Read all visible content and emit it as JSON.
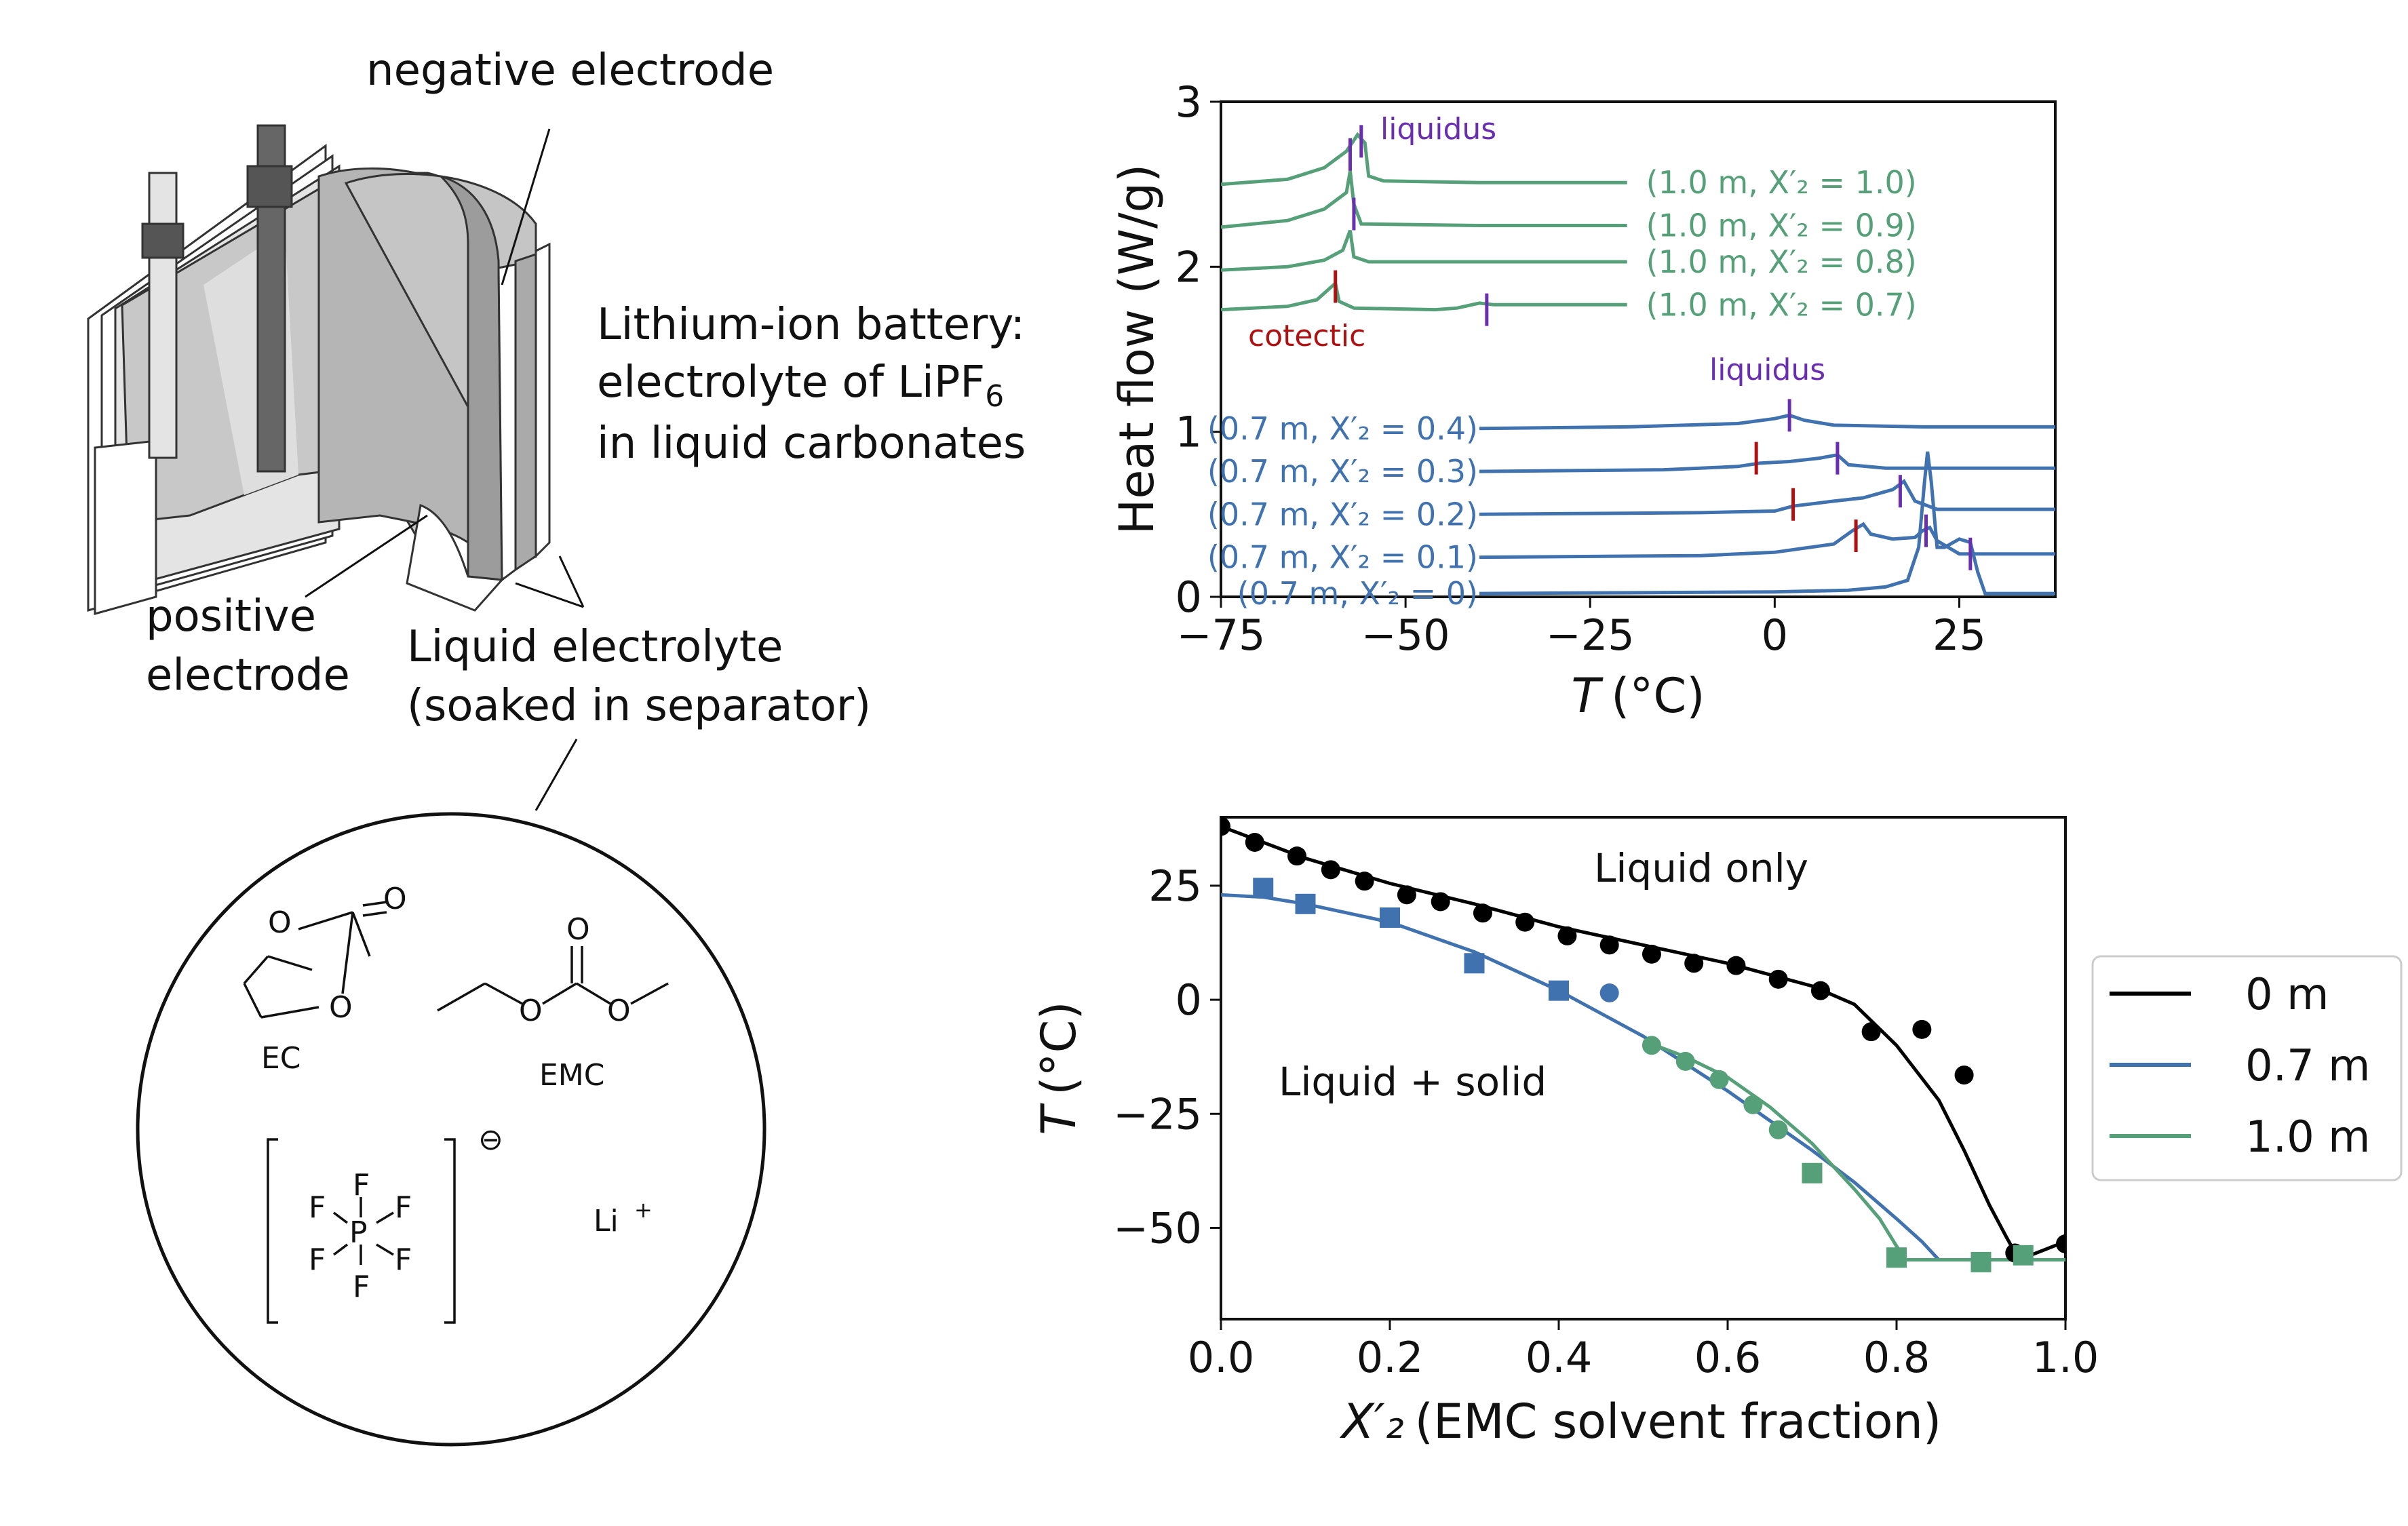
{
  "colors": {
    "green": "#55A078",
    "blue": "#3F72AF",
    "black": "#000000",
    "purple": "#6A2FB0",
    "red": "#B01010"
  },
  "battery": {
    "negative_label": "negative electrode",
    "positive_label_line1": "positive",
    "positive_label_line2": "electrode",
    "title_line1": "Lithium-ion battery:",
    "title_line2_prefix": "electrolyte of LiPF",
    "title_line2_sub": "6",
    "title_line3": "in liquid carbonates",
    "electrolyte_line1": "Liquid electrolyte",
    "electrolyte_line2": "(soaked in separator)"
  },
  "molecules": {
    "ec": "EC",
    "emc": "EMC",
    "cation": "Li",
    "cation_charge": "+",
    "anion_charge": "⊖",
    "atom_o": "O",
    "atom_f": "F",
    "atom_p": "P"
  },
  "chart_data": [
    {
      "type": "line",
      "ylabel": "Heat flow (W/g)",
      "xlabel_var": "T",
      "xlabel_unit": "(°C)",
      "xlim": [
        -75,
        38
      ],
      "ylim": [
        0,
        3
      ],
      "xticks": [
        -75,
        -50,
        -25,
        0,
        25
      ],
      "xtick_labels": [
        "−75",
        "−50",
        "−25",
        "0",
        "25"
      ],
      "yticks": [
        0,
        1,
        2,
        3
      ],
      "annotations": {
        "liquidus_top": "liquidus",
        "liquidus_mid": "liquidus",
        "cotectic": "cotectic"
      },
      "series": [
        {
          "label": "(1.0 m, X′₂ = 1.0)",
          "group": "green",
          "points": [
            [
              -75,
              2.5
            ],
            [
              -66,
              2.53
            ],
            [
              -61,
              2.6
            ],
            [
              -58,
              2.7
            ],
            [
              -56.5,
              2.8
            ],
            [
              -55.5,
              2.75
            ],
            [
              -55,
              2.55
            ],
            [
              -53,
              2.52
            ],
            [
              -40,
              2.51
            ],
            [
              -20,
              2.51
            ]
          ]
        },
        {
          "label": "(1.0 m, X′₂ = 0.9)",
          "group": "green",
          "points": [
            [
              -75,
              2.24
            ],
            [
              -66,
              2.28
            ],
            [
              -61,
              2.35
            ],
            [
              -58,
              2.45
            ],
            [
              -57.5,
              2.58
            ],
            [
              -57,
              2.38
            ],
            [
              -56,
              2.26
            ],
            [
              -40,
              2.25
            ],
            [
              -20,
              2.25
            ]
          ]
        },
        {
          "label": "(1.0 m, X′₂ = 0.8)",
          "group": "green",
          "points": [
            [
              -75,
              1.98
            ],
            [
              -66,
              2.0
            ],
            [
              -61,
              2.04
            ],
            [
              -58.5,
              2.1
            ],
            [
              -57.5,
              2.22
            ],
            [
              -57,
              2.06
            ],
            [
              -55,
              2.03
            ],
            [
              -40,
              2.03
            ],
            [
              -20,
              2.03
            ]
          ]
        },
        {
          "label": "(1.0 m, X′₂ = 0.7)",
          "group": "green",
          "points": [
            [
              -75,
              1.74
            ],
            [
              -66,
              1.76
            ],
            [
              -62,
              1.8
            ],
            [
              -60.5,
              1.86
            ],
            [
              -59.5,
              1.9
            ],
            [
              -59,
              1.79
            ],
            [
              -57,
              1.75
            ],
            [
              -46,
              1.74
            ],
            [
              -43,
              1.75
            ],
            [
              -40,
              1.78
            ],
            [
              -38,
              1.77
            ],
            [
              -20,
              1.77
            ]
          ]
        },
        {
          "label": "(0.7 m, X′₂ = 0.4)",
          "group": "blue",
          "points": [
            [
              -40,
              1.02
            ],
            [
              -20,
              1.03
            ],
            [
              -5,
              1.05
            ],
            [
              0,
              1.08
            ],
            [
              2,
              1.1
            ],
            [
              4,
              1.07
            ],
            [
              8,
              1.04
            ],
            [
              20,
              1.03
            ],
            [
              38,
              1.03
            ]
          ]
        },
        {
          "label": "(0.7 m, X′₂ = 0.3)",
          "group": "blue",
          "points": [
            [
              -40,
              0.76
            ],
            [
              -15,
              0.77
            ],
            [
              -5,
              0.79
            ],
            [
              -2,
              0.81
            ],
            [
              2,
              0.82
            ],
            [
              6,
              0.84
            ],
            [
              8.5,
              0.86
            ],
            [
              10,
              0.8
            ],
            [
              15,
              0.78
            ],
            [
              38,
              0.78
            ]
          ]
        },
        {
          "label": "(0.7 m, X′₂ = 0.2)",
          "group": "blue",
          "points": [
            [
              -40,
              0.5
            ],
            [
              -10,
              0.51
            ],
            [
              0,
              0.52
            ],
            [
              2.5,
              0.55
            ],
            [
              8,
              0.58
            ],
            [
              12,
              0.6
            ],
            [
              16,
              0.65
            ],
            [
              17.5,
              0.7
            ],
            [
              19,
              0.58
            ],
            [
              22,
              0.53
            ],
            [
              38,
              0.53
            ]
          ]
        },
        {
          "label": "(0.7 m, X′₂ = 0.1)",
          "group": "blue",
          "points": [
            [
              -40,
              0.24
            ],
            [
              -10,
              0.25
            ],
            [
              0,
              0.27
            ],
            [
              8,
              0.32
            ],
            [
              10.5,
              0.4
            ],
            [
              12,
              0.44
            ],
            [
              13,
              0.38
            ],
            [
              16,
              0.35
            ],
            [
              19,
              0.36
            ],
            [
              20,
              0.4
            ],
            [
              21,
              0.42
            ],
            [
              22,
              0.34
            ],
            [
              25,
              0.26
            ],
            [
              38,
              0.26
            ]
          ]
        },
        {
          "label": "(0.7 m, X′₂ = 0)",
          "group": "blue",
          "points": [
            [
              -40,
              0.02
            ],
            [
              0,
              0.03
            ],
            [
              10,
              0.04
            ],
            [
              15,
              0.06
            ],
            [
              18,
              0.1
            ],
            [
              19.5,
              0.3
            ],
            [
              20.3,
              0.7
            ],
            [
              20.7,
              0.88
            ],
            [
              21.2,
              0.7
            ],
            [
              22,
              0.3
            ],
            [
              23,
              0.3
            ],
            [
              25,
              0.35
            ],
            [
              26.5,
              0.33
            ],
            [
              27.5,
              0.15
            ],
            [
              28.5,
              0.02
            ],
            [
              38,
              0.02
            ]
          ]
        }
      ],
      "markers": [
        {
          "color": "purple",
          "x": -57.5,
          "y": 2.68
        },
        {
          "color": "purple",
          "x": -56,
          "y": 2.76
        },
        {
          "color": "purple",
          "x": -57,
          "y": 2.32
        },
        {
          "color": "purple",
          "x": -39,
          "y": 1.74
        },
        {
          "color": "red",
          "x": -59.5,
          "y": 1.88
        },
        {
          "color": "purple",
          "x": 2,
          "y": 1.1
        },
        {
          "color": "red",
          "x": -2.5,
          "y": 0.84
        },
        {
          "color": "purple",
          "x": 8.5,
          "y": 0.84
        },
        {
          "color": "red",
          "x": 2.5,
          "y": 0.56
        },
        {
          "color": "purple",
          "x": 17,
          "y": 0.64
        },
        {
          "color": "red",
          "x": 11,
          "y": 0.37
        },
        {
          "color": "purple",
          "x": 20.5,
          "y": 0.4
        },
        {
          "color": "purple",
          "x": 26.5,
          "y": 0.26
        }
      ]
    },
    {
      "type": "scatter",
      "xlabel_var": "X′₂",
      "xlabel": "(EMC solvent fraction)",
      "ylabel_var": "T",
      "ylabel_unit": "(°C)",
      "xlim": [
        0,
        1
      ],
      "ylim": [
        -70,
        40
      ],
      "xticks": [
        0.0,
        0.2,
        0.4,
        0.6,
        0.8,
        1.0
      ],
      "xtick_labels": [
        "0.0",
        "0.2",
        "0.4",
        "0.6",
        "0.8",
        "1.0"
      ],
      "yticks": [
        25,
        0,
        -25,
        -50
      ],
      "ytick_labels": [
        "25",
        "0",
        "−25",
        "−50"
      ],
      "region_labels": {
        "top": "Liquid only",
        "bottom": "Liquid + solid"
      },
      "legend": [
        "0 m",
        "0.7 m",
        "1.0 m"
      ],
      "legend_position": "right",
      "series": [
        {
          "name": "0 m",
          "color": "black",
          "curve": [
            [
              0,
              38
            ],
            [
              0.1,
              31
            ],
            [
              0.2,
              25.5
            ],
            [
              0.3,
              21
            ],
            [
              0.4,
              16
            ],
            [
              0.5,
              12
            ],
            [
              0.6,
              8
            ],
            [
              0.7,
              3
            ],
            [
              0.75,
              -1
            ],
            [
              0.8,
              -10
            ],
            [
              0.85,
              -22
            ],
            [
              0.88,
              -33
            ],
            [
              0.91,
              -45
            ],
            [
              0.93,
              -52
            ],
            [
              0.945,
              -57
            ],
            [
              1.0,
              -53
            ]
          ],
          "points_circle": [
            [
              0,
              38
            ],
            [
              0.04,
              34.5
            ],
            [
              0.09,
              31.5
            ],
            [
              0.13,
              28.5
            ],
            [
              0.17,
              26
            ],
            [
              0.22,
              23
            ],
            [
              0.26,
              21.5
            ],
            [
              0.31,
              19
            ],
            [
              0.36,
              17
            ],
            [
              0.41,
              14
            ],
            [
              0.46,
              12
            ],
            [
              0.51,
              10
            ],
            [
              0.56,
              8
            ],
            [
              0.61,
              7.5
            ],
            [
              0.66,
              4.5
            ],
            [
              0.71,
              2
            ],
            [
              0.77,
              -7
            ],
            [
              0.83,
              -6.5
            ],
            [
              0.88,
              -16.5
            ],
            [
              0.94,
              -55.5
            ],
            [
              1.0,
              -53.5
            ]
          ],
          "points_square": []
        },
        {
          "name": "0.7 m",
          "color": "blue",
          "curve": [
            [
              0,
              23
            ],
            [
              0.05,
              22.5
            ],
            [
              0.1,
              21
            ],
            [
              0.2,
              17
            ],
            [
              0.3,
              10.5
            ],
            [
              0.4,
              2
            ],
            [
              0.5,
              -8
            ],
            [
              0.6,
              -20
            ],
            [
              0.7,
              -33
            ],
            [
              0.75,
              -40
            ],
            [
              0.8,
              -48
            ],
            [
              0.83,
              -53
            ],
            [
              0.85,
              -57
            ],
            [
              1.0,
              -57
            ]
          ],
          "points_circle": [
            [
              0.46,
              1.5
            ]
          ],
          "points_square": [
            [
              0.05,
              24.5
            ],
            [
              0.1,
              21
            ],
            [
              0.2,
              18
            ],
            [
              0.3,
              8
            ],
            [
              0.4,
              2
            ]
          ]
        },
        {
          "name": "1.0 m",
          "color": "green",
          "curve": [
            [
              0.5,
              -9
            ],
            [
              0.55,
              -12.5
            ],
            [
              0.6,
              -17
            ],
            [
              0.65,
              -23.5
            ],
            [
              0.7,
              -31.5
            ],
            [
              0.75,
              -41.5
            ],
            [
              0.78,
              -48
            ],
            [
              0.81,
              -57
            ],
            [
              1.0,
              -57
            ]
          ],
          "points_circle": [
            [
              0.51,
              -10
            ],
            [
              0.55,
              -13.5
            ],
            [
              0.59,
              -17.5
            ],
            [
              0.63,
              -23
            ],
            [
              0.66,
              -28.5
            ]
          ],
          "points_square": [
            [
              0.7,
              -38
            ],
            [
              0.8,
              -56.5
            ],
            [
              0.9,
              -57.5
            ],
            [
              0.95,
              -56
            ]
          ]
        }
      ]
    }
  ]
}
